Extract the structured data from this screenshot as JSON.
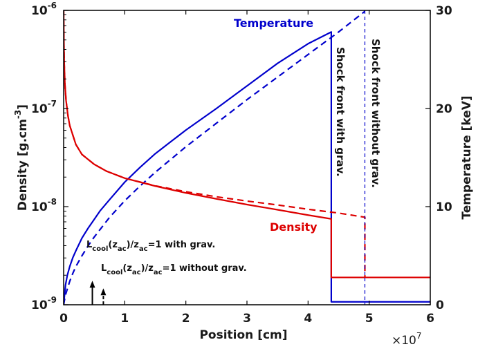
{
  "chart_data": {
    "type": "line",
    "xlabel": "Position [cm]",
    "x_multiplier": "×10",
    "x_multiplier_exp": "7",
    "xlim": [
      0,
      6
    ],
    "x_ticks": [
      "0",
      "1",
      "2",
      "3",
      "4",
      "5",
      "6"
    ],
    "left_axis": {
      "label": "Density [g.cm",
      "label_sup": "-3",
      "label_end": "]",
      "scale": "log",
      "lim": [
        1e-09,
        1e-06
      ],
      "ticks": [
        {
          "base": "10",
          "exp": "-9",
          "value": 1e-09
        },
        {
          "base": "10",
          "exp": "-8",
          "value": 1e-08
        },
        {
          "base": "10",
          "exp": "-7",
          "value": 1e-07
        },
        {
          "base": "10",
          "exp": "-6",
          "value": 1e-06
        }
      ]
    },
    "right_axis": {
      "label": "Temperature [keV]",
      "scale": "linear",
      "lim": [
        0,
        30
      ],
      "ticks": [
        "0",
        "10",
        "20",
        "30"
      ]
    },
    "series": [
      {
        "name": "Temperature",
        "axis": "right",
        "color": "#0000cc",
        "style": "solid",
        "x": [
          0.0,
          0.03,
          0.06,
          0.1,
          0.15,
          0.2,
          0.3,
          0.4,
          0.5,
          0.6,
          0.75,
          1.0,
          1.25,
          1.5,
          1.75,
          2.0,
          2.5,
          3.0,
          3.5,
          4.0,
          4.38,
          4.38,
          6.0
        ],
        "y": [
          0.0,
          2.0,
          3.0,
          3.9,
          4.8,
          5.5,
          6.8,
          7.8,
          8.7,
          9.6,
          10.7,
          12.5,
          14.0,
          15.4,
          16.6,
          17.8,
          20.0,
          22.3,
          24.6,
          26.6,
          27.8,
          0.3,
          0.3
        ]
      },
      {
        "name": "Temperature",
        "axis": "right",
        "color": "#0000cc",
        "style": "dashed",
        "x": [
          0.0,
          0.03,
          0.06,
          0.1,
          0.15,
          0.2,
          0.3,
          0.4,
          0.5,
          0.6,
          0.75,
          1.0,
          1.25,
          1.5,
          1.75,
          2.0,
          2.5,
          3.0,
          3.5,
          4.0,
          4.5,
          4.93
        ],
        "y": [
          0.0,
          1.0,
          1.6,
          2.4,
          3.2,
          3.9,
          5.0,
          6.0,
          6.9,
          7.7,
          8.9,
          10.6,
          12.1,
          13.5,
          14.8,
          16.1,
          18.5,
          20.9,
          23.2,
          25.5,
          27.8,
          29.9
        ]
      },
      {
        "name": "Density",
        "axis": "left",
        "color": "#dd0000",
        "style": "solid",
        "x": [
          0.0,
          0.005,
          0.01,
          0.02,
          0.04,
          0.07,
          0.1,
          0.2,
          0.3,
          0.5,
          0.7,
          1.0,
          1.5,
          2.0,
          2.5,
          3.0,
          3.5,
          4.0,
          4.38,
          4.38,
          6.0
        ],
        "y": [
          1e-06,
          4.5e-07,
          2.9e-07,
          1.8e-07,
          1.2e-07,
          8.5e-08,
          6.7e-08,
          4.3e-08,
          3.4e-08,
          2.7e-08,
          2.3e-08,
          1.95e-08,
          1.62e-08,
          1.38e-08,
          1.2e-08,
          1.05e-08,
          9.3e-09,
          8.2e-09,
          7.5e-09,
          1.9e-09,
          1.9e-09
        ]
      },
      {
        "name": "Density",
        "axis": "left",
        "color": "#dd0000",
        "style": "dashed",
        "x": [
          0.0,
          0.005,
          0.01,
          0.02,
          0.04,
          0.07,
          0.1,
          0.2,
          0.3,
          0.5,
          0.7,
          1.0,
          1.5,
          2.0,
          2.5,
          3.0,
          3.5,
          4.0,
          4.5,
          4.93,
          4.93
        ],
        "y": [
          1e-06,
          4.5e-07,
          2.9e-07,
          1.8e-07,
          1.2e-07,
          8.5e-08,
          6.7e-08,
          4.3e-08,
          3.4e-08,
          2.7e-08,
          2.3e-08,
          1.95e-08,
          1.63e-08,
          1.42e-08,
          1.26e-08,
          1.14e-08,
          1.04e-08,
          9.4e-09,
          8.6e-09,
          7.8e-09,
          1.9e-09
        ]
      }
    ],
    "shock_with_grav_x": 4.38,
    "shock_without_grav_x": 4.93,
    "annotations": {
      "temperature_label": "Temperature",
      "density_label": "Density",
      "shock_with_grav": "Shock front with grav.",
      "shock_without_grav": "Shock front without grav.",
      "lcool_with": {
        "L": "L",
        "sub1": "cool",
        "mid": "(z",
        "sub2": "ac",
        "mid2": ")/z",
        "sub3": "ac",
        "tail": "=1 with grav.",
        "x": 0.47,
        "y_top": 1.7e-09
      },
      "lcool_without": {
        "L": "L",
        "sub1": "cool",
        "mid": "(z",
        "sub2": "ac",
        "mid2": ")/z",
        "sub3": "ac",
        "tail": "=1 without grav.",
        "x": 0.65,
        "y_top": 1.25e-09
      }
    }
  }
}
